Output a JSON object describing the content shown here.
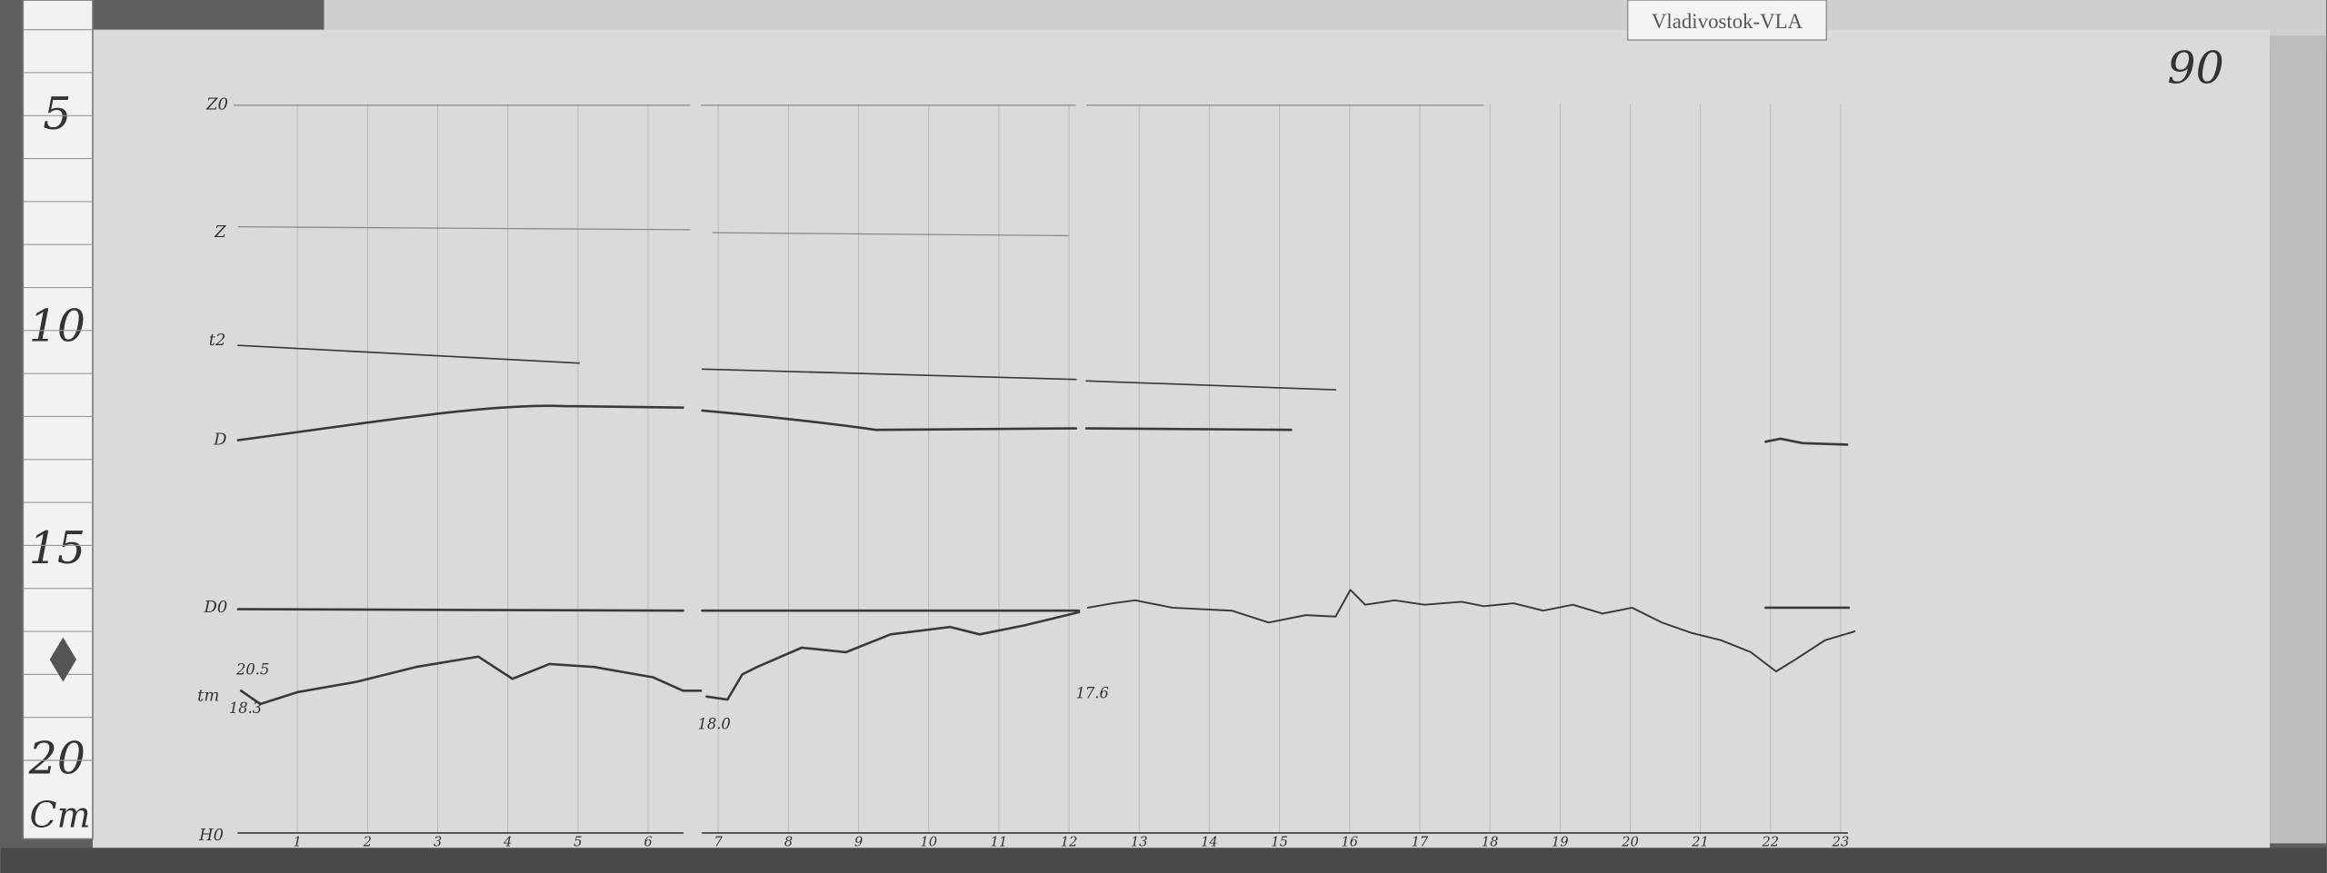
{
  "label": "Vladivostok-VLA",
  "page_number": "90",
  "ruler": {
    "marks": [
      "5",
      "10",
      "15",
      "20"
    ],
    "unit": "Cm"
  },
  "trace_labels": [
    "Z0",
    "Z",
    "t2",
    "D",
    "D0",
    "tm",
    "H0"
  ],
  "annotations": [
    "20.5",
    "18.3",
    "18.0",
    "17.6"
  ],
  "hours": [
    "1",
    "2",
    "3",
    "4",
    "5",
    "6",
    "7",
    "8",
    "9",
    "10",
    "11",
    "12",
    "13",
    "14",
    "15",
    "16",
    "17",
    "18",
    "19",
    "20",
    "21",
    "22",
    "23"
  ]
}
